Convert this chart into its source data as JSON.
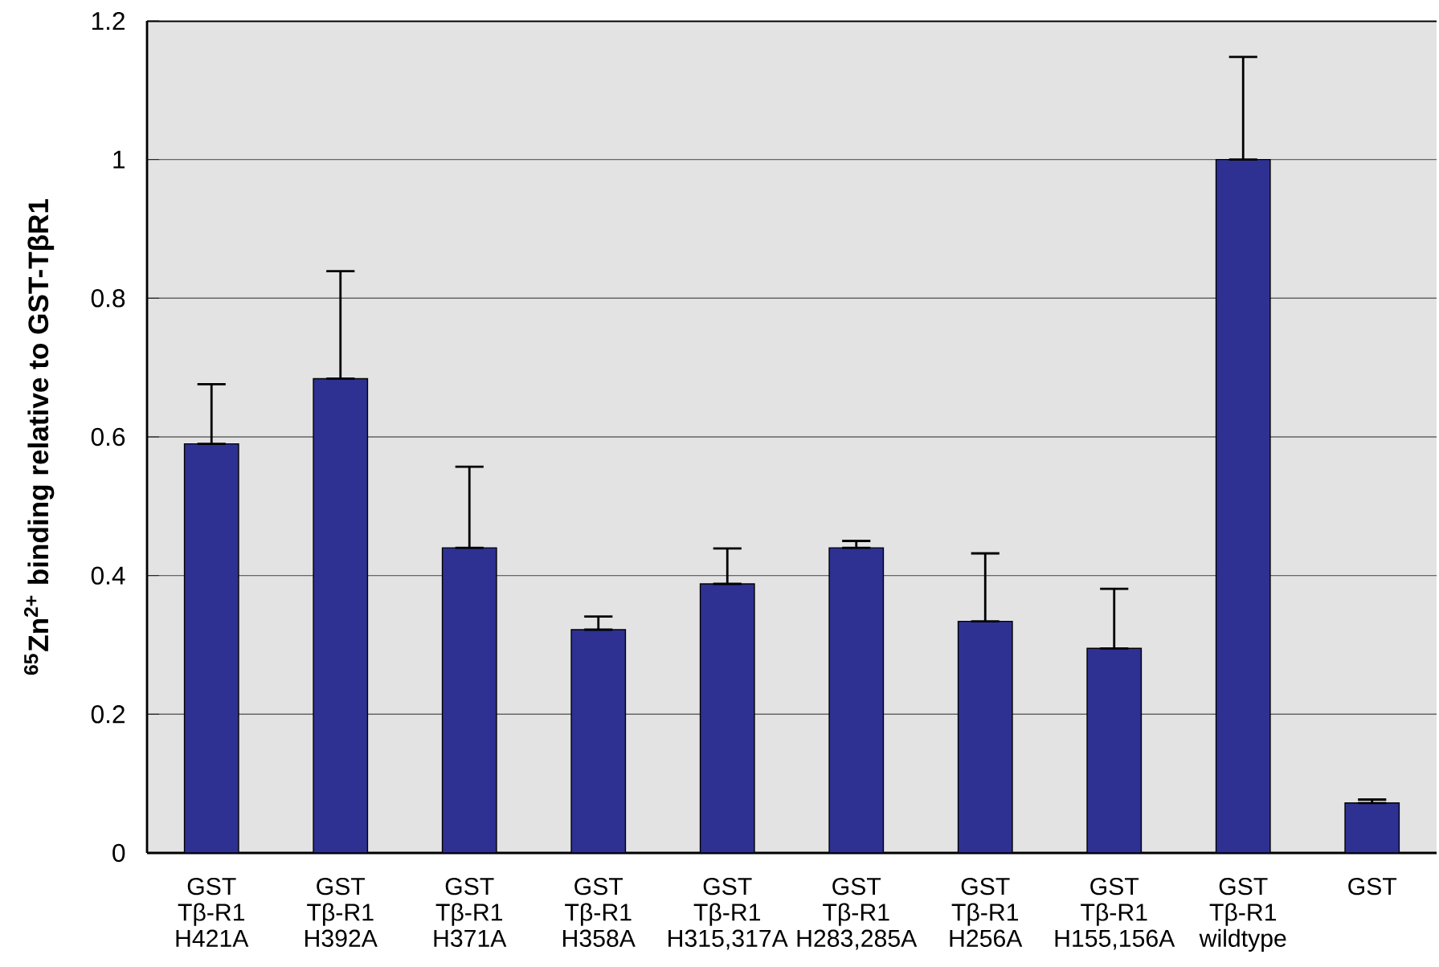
{
  "chart_data": {
    "type": "bar",
    "ylabel": "$^{65}$Zn$^{2+}$ binding relative to GST-TβR1",
    "categories": [
      "GST\nTβ-R1\nH421A",
      "GST\nTβ-R1\nH392A",
      "GST\nTβ-R1\nH371A",
      "GST\nTβ-R1\nH358A",
      "GST\nTβ-R1\nH315,317A",
      "GST\nTβ-R1\nH283,285A",
      "GST\nTβ-R1\nH256A",
      "GST\nTβ-R1\nH155,156A",
      "GST\nTβ-R1\nwildtype",
      "GST"
    ],
    "values": [
      0.59,
      0.684,
      0.44,
      0.322,
      0.388,
      0.44,
      0.334,
      0.295,
      1.0,
      0.072
    ],
    "errors": [
      [
        0.59,
        0.676
      ],
      [
        0.684,
        0.839
      ],
      [
        0.44,
        0.557
      ],
      [
        0.322,
        0.341
      ],
      [
        0.388,
        0.439
      ],
      [
        0.44,
        0.45
      ],
      [
        0.334,
        0.432
      ],
      [
        0.295,
        0.381
      ],
      [
        1.0,
        1.148
      ],
      [
        0.072,
        0.077
      ]
    ],
    "color": "#2e3192",
    "ylim": [
      0,
      1.2
    ],
    "yticks": [
      0,
      0.2,
      0.4,
      0.6,
      0.8,
      1,
      1.2
    ],
    "grid": "y"
  }
}
